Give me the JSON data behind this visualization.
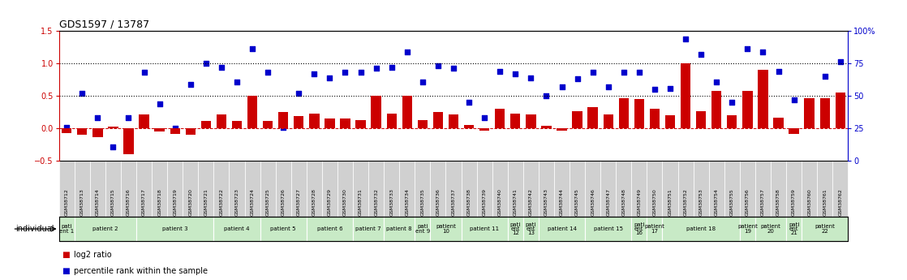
{
  "title": "GDS1597 / 13787",
  "gsm_labels": [
    "GSM38712",
    "GSM38713",
    "GSM38714",
    "GSM38715",
    "GSM38716",
    "GSM38717",
    "GSM38718",
    "GSM38719",
    "GSM38720",
    "GSM38721",
    "GSM38722",
    "GSM38723",
    "GSM38724",
    "GSM38725",
    "GSM38726",
    "GSM38727",
    "GSM38728",
    "GSM38729",
    "GSM38730",
    "GSM38731",
    "GSM38732",
    "GSM38733",
    "GSM38734",
    "GSM38735",
    "GSM38736",
    "GSM38737",
    "GSM38738",
    "GSM38739",
    "GSM38740",
    "GSM38741",
    "GSM38742",
    "GSM38743",
    "GSM38744",
    "GSM38745",
    "GSM38746",
    "GSM38747",
    "GSM38748",
    "GSM38749",
    "GSM38750",
    "GSM38751",
    "GSM38752",
    "GSM38753",
    "GSM38754",
    "GSM38755",
    "GSM38756",
    "GSM38757",
    "GSM38758",
    "GSM38759",
    "GSM38760",
    "GSM38761",
    "GSM38762"
  ],
  "log2_ratio": [
    -0.07,
    -0.1,
    -0.14,
    0.03,
    -0.4,
    0.21,
    -0.05,
    -0.08,
    -0.1,
    0.12,
    0.22,
    0.12,
    0.5,
    0.12,
    0.25,
    0.19,
    0.23,
    0.15,
    0.15,
    0.13,
    0.5,
    0.23,
    0.5,
    0.13,
    0.25,
    0.22,
    0.05,
    -0.04,
    0.3,
    0.23,
    0.22,
    0.04,
    -0.04,
    0.27,
    0.33,
    0.22,
    0.47,
    0.45,
    0.3,
    0.2,
    1.0,
    0.27,
    0.58,
    0.2,
    0.58,
    0.9,
    0.16,
    -0.08,
    0.47,
    0.47,
    0.55
  ],
  "percentile_rank_pct": [
    26,
    52,
    33,
    11,
    33,
    68,
    44,
    25,
    59,
    75,
    72,
    61,
    86,
    68,
    26,
    52,
    67,
    64,
    68,
    68,
    71,
    72,
    84,
    61,
    73,
    71,
    45,
    33,
    69,
    67,
    64,
    50,
    57,
    63,
    68,
    57,
    68,
    68,
    55,
    56,
    94,
    82,
    61,
    45,
    86,
    84,
    69,
    47,
    46,
    65,
    76
  ],
  "patient_groups": [
    {
      "label": "pati\nent 1",
      "start": 0,
      "end": 1
    },
    {
      "label": "patient 2",
      "start": 1,
      "end": 5
    },
    {
      "label": "patient 3",
      "start": 5,
      "end": 10
    },
    {
      "label": "patient 4",
      "start": 10,
      "end": 13
    },
    {
      "label": "patient 5",
      "start": 13,
      "end": 16
    },
    {
      "label": "patient 6",
      "start": 16,
      "end": 19
    },
    {
      "label": "patient 7",
      "start": 19,
      "end": 21
    },
    {
      "label": "patient 8",
      "start": 21,
      "end": 23
    },
    {
      "label": "pati\nent 9",
      "start": 23,
      "end": 24
    },
    {
      "label": "patient\n10",
      "start": 24,
      "end": 26
    },
    {
      "label": "patient 11",
      "start": 26,
      "end": 29
    },
    {
      "label": "pati\nent\n12",
      "start": 29,
      "end": 30
    },
    {
      "label": "pati\nent\n13",
      "start": 30,
      "end": 31
    },
    {
      "label": "patient 14",
      "start": 31,
      "end": 34
    },
    {
      "label": "patient 15",
      "start": 34,
      "end": 37
    },
    {
      "label": "pati\nent\n16",
      "start": 37,
      "end": 38
    },
    {
      "label": "patient\n17",
      "start": 38,
      "end": 39
    },
    {
      "label": "patient 18",
      "start": 39,
      "end": 44
    },
    {
      "label": "patient\n19",
      "start": 44,
      "end": 45
    },
    {
      "label": "patient\n20",
      "start": 45,
      "end": 47
    },
    {
      "label": "pati\nent\n21",
      "start": 47,
      "end": 48
    },
    {
      "label": "patient\n22",
      "start": 48,
      "end": 51
    }
  ],
  "ylim_left": [
    -0.5,
    1.5
  ],
  "ylim_right": [
    0,
    100
  ],
  "bar_color": "#cc0000",
  "dot_color": "#0000cc",
  "hline_color": "#cc0000",
  "gsm_bg_color": "#d0d0d0",
  "patient_bg_color": "#c8eac6",
  "legend_red_label": "log2 ratio",
  "legend_blue_label": "percentile rank within the sample"
}
